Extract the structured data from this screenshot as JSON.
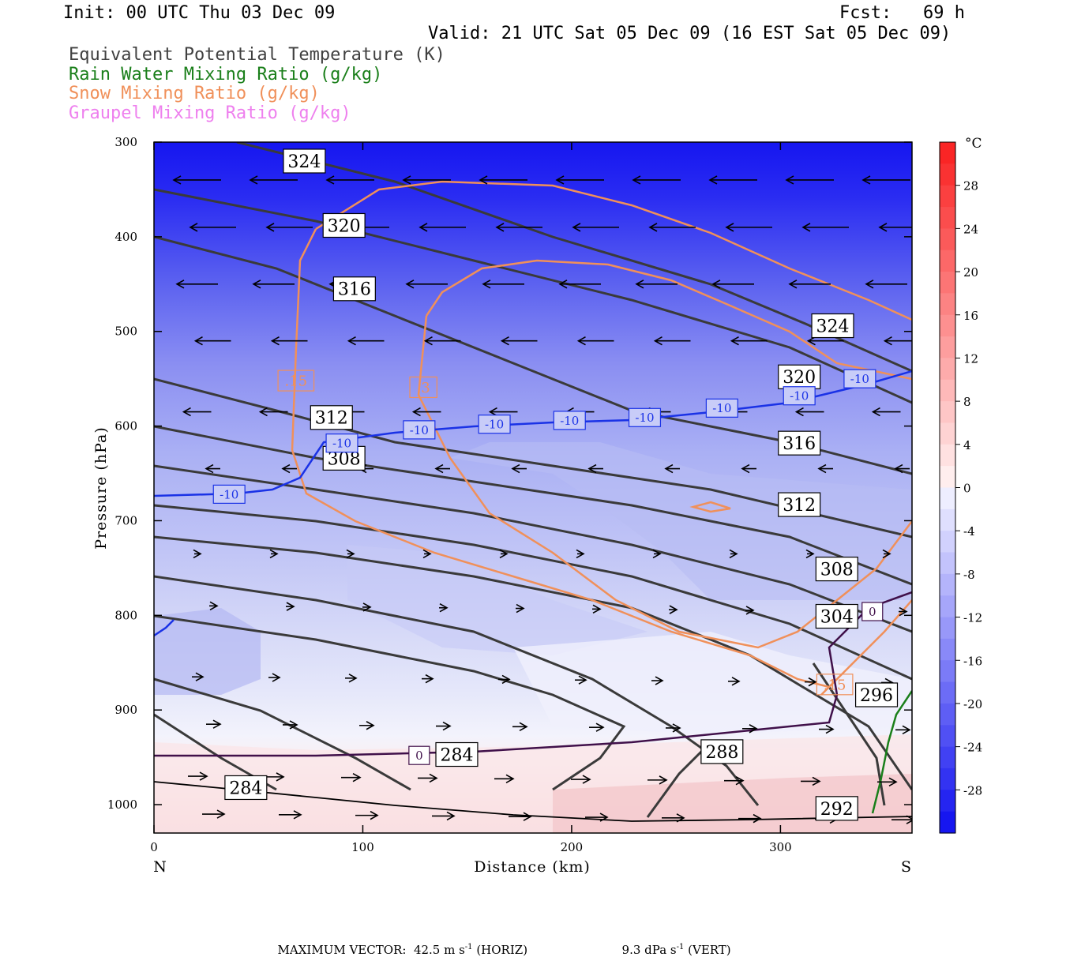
{
  "header": {
    "init": "Init: 00 UTC Thu 03 Dec 09",
    "fcst": "Fcst:   69 h",
    "valid": "Valid: 21 UTC Sat 05 Dec 09 (16 EST Sat 05 Dec 09)"
  },
  "legend": [
    {
      "text": "Equivalent Potential Temperature (K)",
      "color": "#404040"
    },
    {
      "text": "Rain Water Mixing Ratio (g/kg)",
      "color": "#1a7f1a"
    },
    {
      "text": "Snow Mixing Ratio (g/kg)",
      "color": "#f0905a"
    },
    {
      "text": "Graupel Mixing Ratio (g/kg)",
      "color": "#ee80ee"
    }
  ],
  "chart_data": {
    "type": "cross-section",
    "xlabel": "Distance (km)",
    "ylabel": "Pressure (hPa)",
    "xlim": [
      0,
      363
    ],
    "ylim": [
      1030,
      300
    ],
    "x_ticks": [
      "0",
      "100",
      "200",
      "300"
    ],
    "x_tick_values": [
      0,
      100,
      200,
      300
    ],
    "y_ticks": [
      "300",
      "400",
      "500",
      "600",
      "700",
      "800",
      "900",
      "1000"
    ],
    "y_tick_values": [
      300,
      400,
      500,
      600,
      700,
      800,
      900,
      1000
    ],
    "left_end_label": "N",
    "right_end_label": "S",
    "colorbar": {
      "unit": "°C",
      "labels": [
        "28",
        "24",
        "20",
        "16",
        "12",
        "8",
        "4",
        "0",
        "-4",
        "-8",
        "-12",
        "-16",
        "-20",
        "-24",
        "-28"
      ],
      "values": [
        28,
        24,
        20,
        16,
        12,
        8,
        4,
        0,
        -4,
        -8,
        -12,
        -16,
        -20,
        -24,
        -28
      ],
      "range": [
        -32,
        32
      ]
    },
    "theta_e_labels": [
      {
        "text": "324",
        "x": 72,
        "p": 320
      },
      {
        "text": "320",
        "x": 91,
        "p": 388
      },
      {
        "text": "316",
        "x": 96,
        "p": 455
      },
      {
        "text": "312",
        "x": 85,
        "p": 591
      },
      {
        "text": "308",
        "x": 91,
        "p": 634
      },
      {
        "text": "284",
        "x": 44,
        "p": 982
      },
      {
        "text": "284",
        "x": 145,
        "p": 947
      },
      {
        "text": "288",
        "x": 272,
        "p": 944
      },
      {
        "text": "324",
        "x": 325,
        "p": 494
      },
      {
        "text": "320",
        "x": 309,
        "p": 548
      },
      {
        "text": "316",
        "x": 309,
        "p": 618
      },
      {
        "text": "312",
        "x": 309,
        "p": 683
      },
      {
        "text": "308",
        "x": 327,
        "p": 751
      },
      {
        "text": "304",
        "x": 327,
        "p": 801
      },
      {
        "text": "296",
        "x": 346,
        "p": 884
      },
      {
        "text": "292",
        "x": 327,
        "p": 1004
      }
    ],
    "temperature_labels": [
      {
        "text": "-10",
        "x": 36,
        "p": 672
      },
      {
        "text": "-10",
        "x": 90,
        "p": 618
      },
      {
        "text": "-10",
        "x": 127,
        "p": 604
      },
      {
        "text": "-10",
        "x": 163,
        "p": 598
      },
      {
        "text": "-10",
        "x": 199,
        "p": 594
      },
      {
        "text": "-10",
        "x": 235,
        "p": 591
      },
      {
        "text": "-10",
        "x": 272,
        "p": 581
      },
      {
        "text": "-10",
        "x": 309,
        "p": 568
      },
      {
        "text": "-10",
        "x": 338,
        "p": 550
      },
      {
        "text": "0",
        "x": 127,
        "p": 948
      },
      {
        "text": "0",
        "x": 344,
        "p": 796
      }
    ],
    "snow_labels": [
      {
        "text": ".15",
        "x": 68,
        "p": 552
      },
      {
        "text": ".3",
        "x": 129,
        "p": 559
      },
      {
        "text": ".15",
        "x": 326,
        "p": 873
      }
    ],
    "max_vector": {
      "label": "MAXIMUM VECTOR:",
      "horiz": "42.5 m s",
      "horiz_unit": "(HORIZ)",
      "vert": "9.3 dPa s",
      "vert_unit": "(VERT)",
      "exp": "-1"
    }
  }
}
